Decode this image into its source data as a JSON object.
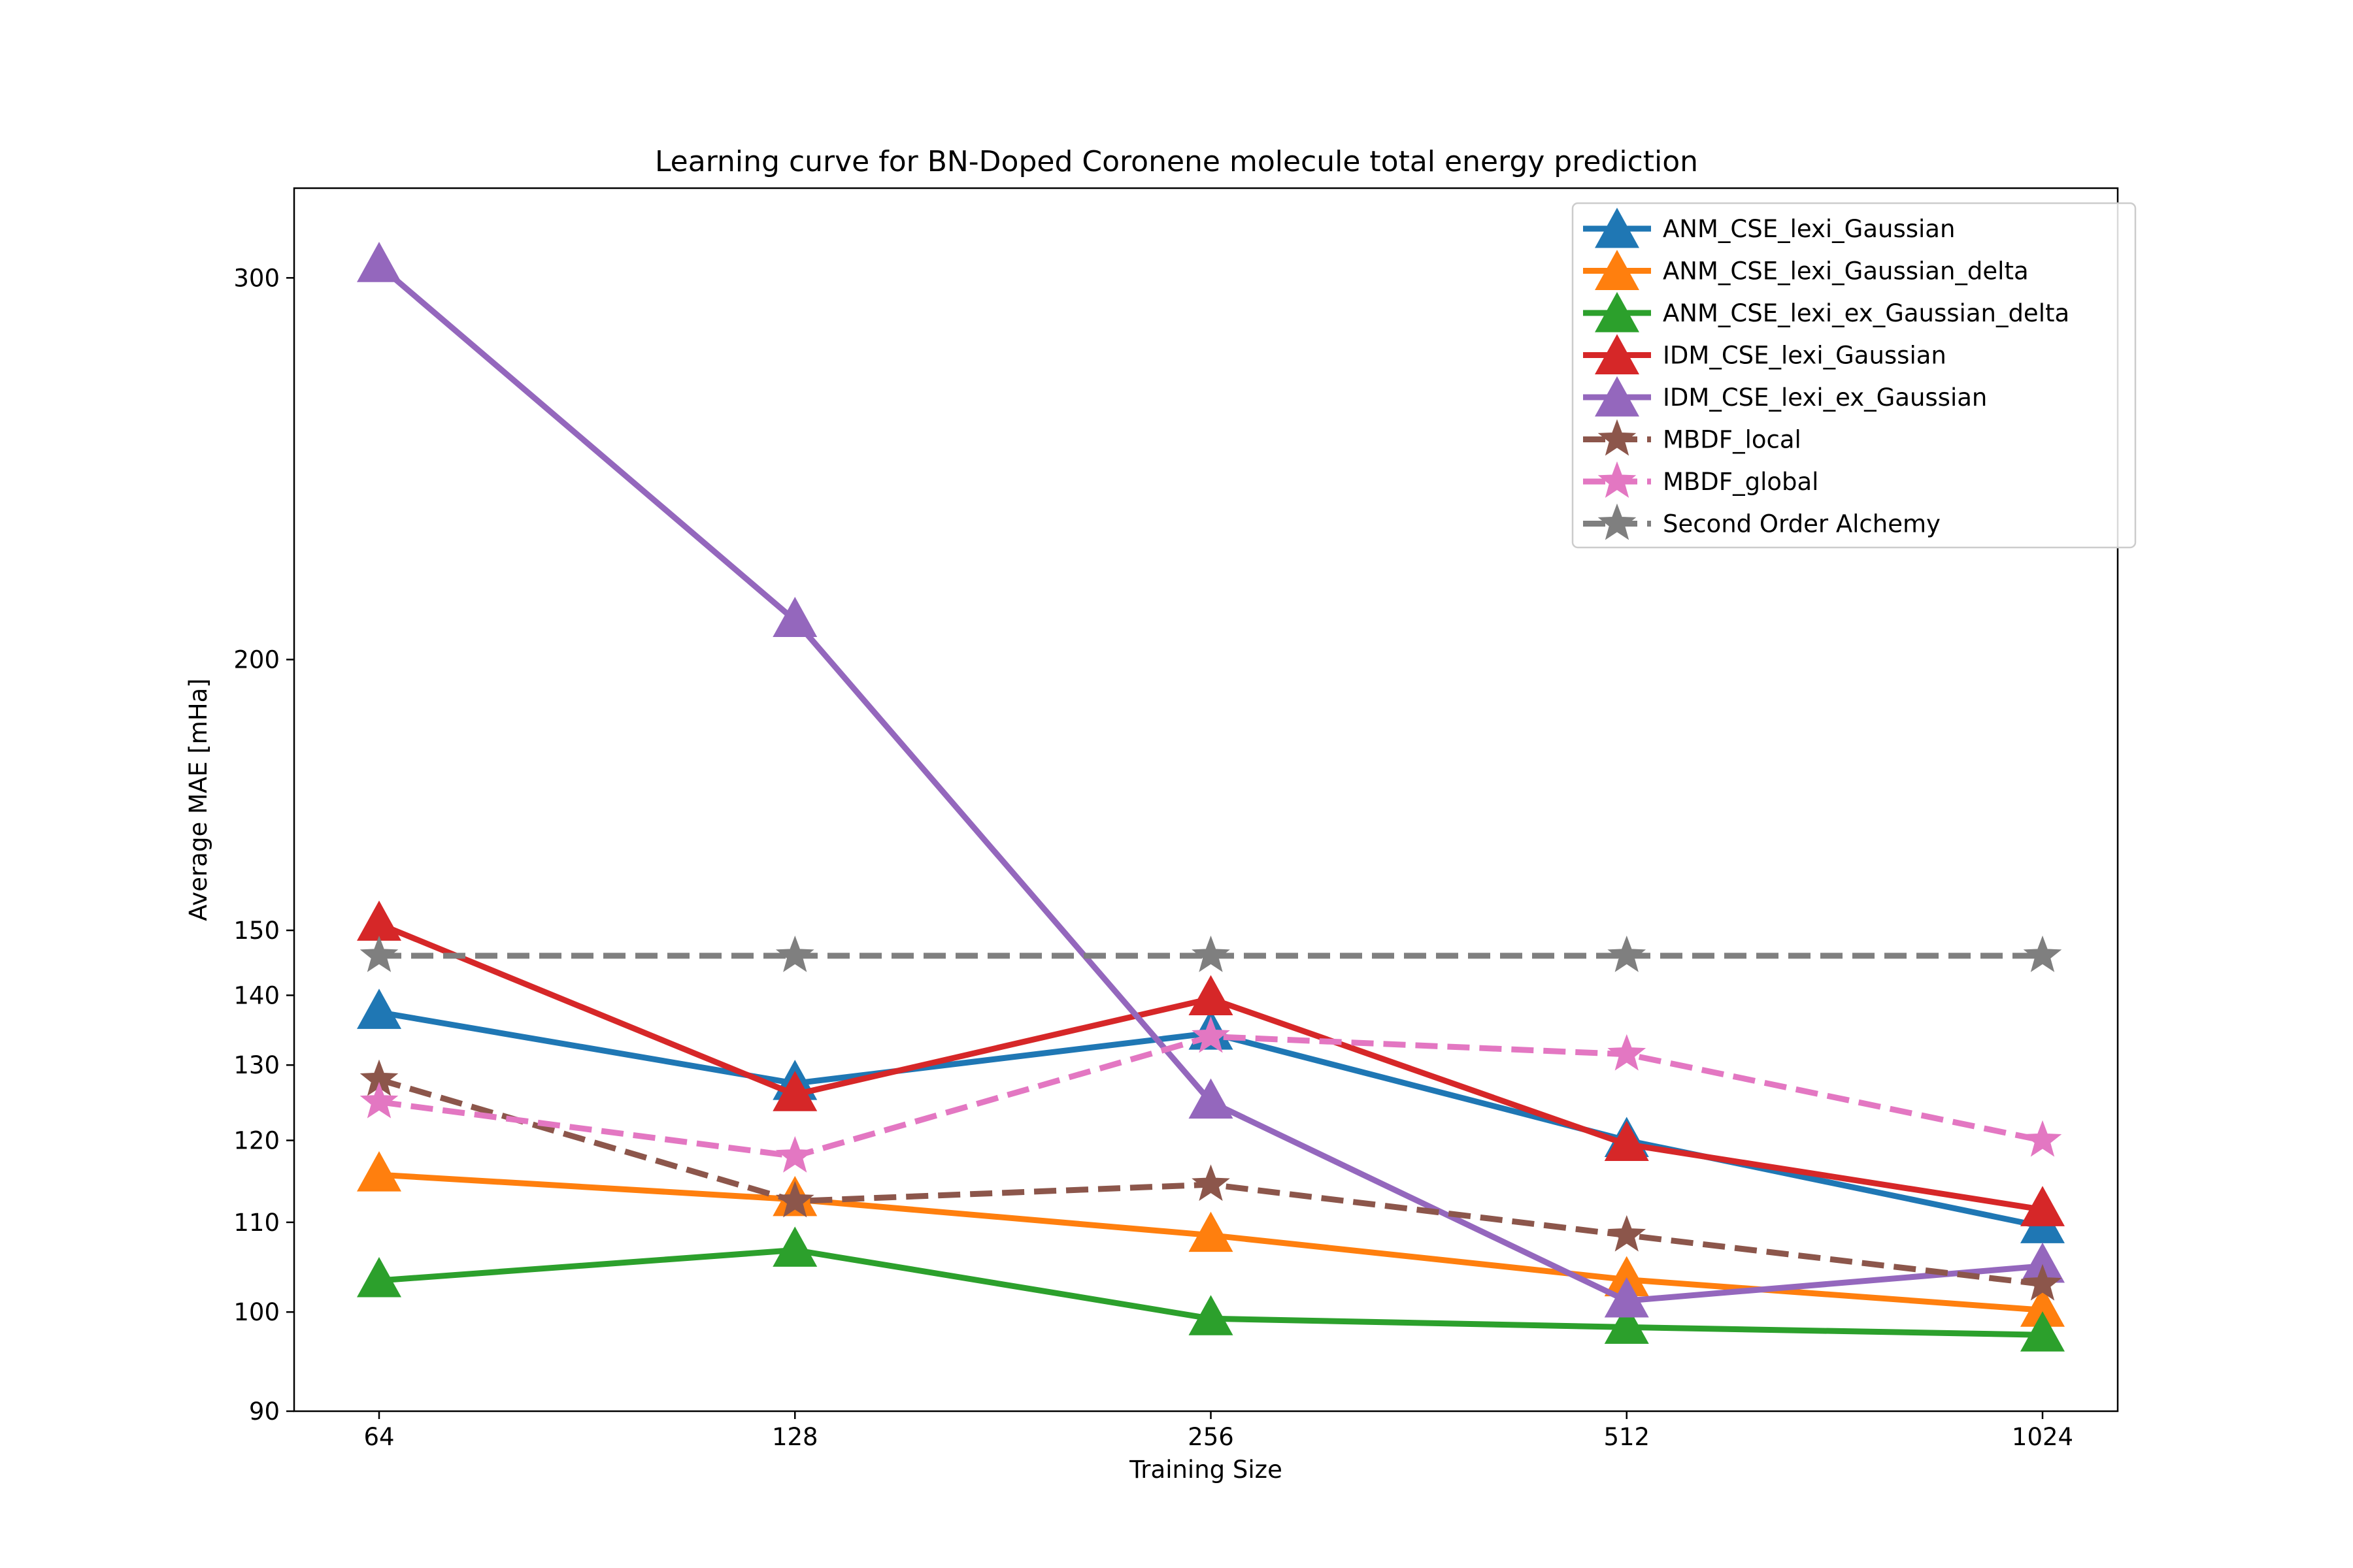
{
  "chart_data": {
    "type": "line",
    "title": "Learning curve for BN-Doped Coronene molecule total energy prediction",
    "xlabel": "Training Size",
    "ylabel": "Average MAE [mHa]",
    "x_scale": "log2",
    "y_scale": "log",
    "x": [
      64,
      128,
      256,
      512,
      1024
    ],
    "xticks": [
      "64",
      "128",
      "256",
      "512",
      "1024"
    ],
    "yticks": [
      90,
      100,
      110,
      120,
      130,
      140,
      150,
      200,
      300
    ],
    "ylim": [
      90,
      330
    ],
    "legend_position": "top-right",
    "series": [
      {
        "name": "ANM_CSE_lexi_Gaussian",
        "color": "#1f77b4",
        "marker": "triangle",
        "dashed": false,
        "values": [
          137.5,
          127.5,
          134.5,
          120.0,
          109.5
        ]
      },
      {
        "name": "ANM_CSE_lexi_Gaussian_delta",
        "color": "#ff7f0e",
        "marker": "triangle",
        "dashed": false,
        "values": [
          115.7,
          112.7,
          108.5,
          103.5,
          100.2
        ]
      },
      {
        "name": "ANM_CSE_lexi_ex_Gaussian_delta",
        "color": "#2ca02c",
        "marker": "triangle",
        "dashed": false,
        "values": [
          103.4,
          106.8,
          99.3,
          98.4,
          97.6
        ]
      },
      {
        "name": "IDM_CSE_lexi_Gaussian",
        "color": "#d62728",
        "marker": "triangle",
        "dashed": false,
        "values": [
          151.0,
          126.0,
          139.5,
          119.5,
          111.5
        ]
      },
      {
        "name": "IDM_CSE_lexi_ex_Gaussian",
        "color": "#9467bd",
        "marker": "triangle",
        "dashed": false,
        "values": [
          304.0,
          208.5,
          125.0,
          101.2,
          105.0
        ]
      },
      {
        "name": "MBDF_local",
        "color": "#8c564b",
        "marker": "star",
        "dashed": true,
        "values": [
          128.0,
          112.5,
          114.5,
          108.5,
          103.0
        ]
      },
      {
        "name": "MBDF_global",
        "color": "#e377c2",
        "marker": "star",
        "dashed": true,
        "values": [
          125.0,
          118.0,
          134.0,
          131.5,
          120.0
        ]
      },
      {
        "name": "Second Order Alchemy",
        "color": "#7f7f7f",
        "marker": "star",
        "dashed": true,
        "values": [
          146.0,
          146.0,
          146.0,
          146.0,
          146.0
        ]
      }
    ]
  }
}
